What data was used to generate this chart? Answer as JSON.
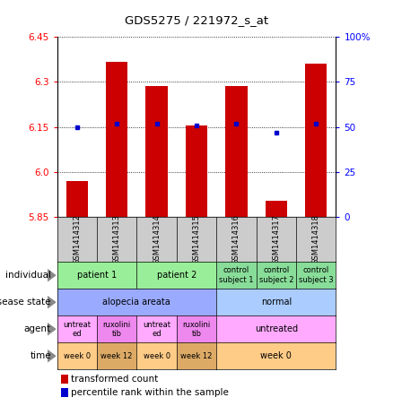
{
  "title": "GDS5275 / 221972_s_at",
  "samples": [
    "GSM1414312",
    "GSM1414313",
    "GSM1414314",
    "GSM1414315",
    "GSM1414316",
    "GSM1414317",
    "GSM1414318"
  ],
  "transformed_count": [
    5.97,
    6.365,
    6.285,
    6.155,
    6.285,
    5.905,
    6.36
  ],
  "percentile_rank": [
    50,
    52,
    52,
    51,
    52,
    47,
    52
  ],
  "y_min": 5.85,
  "y_max": 6.45,
  "y_ticks_red": [
    5.85,
    6.0,
    6.15,
    6.3,
    6.45
  ],
  "y_ticks_blue_labels": [
    "0",
    "25",
    "50",
    "75",
    "100%"
  ],
  "bar_color": "#cc0000",
  "dot_color": "#0000cc",
  "individual_data": [
    {
      "label": "patient 1",
      "start": 0,
      "end": 2,
      "color": "#99ee99"
    },
    {
      "label": "patient 2",
      "start": 2,
      "end": 4,
      "color": "#99ee99"
    },
    {
      "label": "control\nsubject 1",
      "start": 4,
      "end": 5,
      "color": "#88dd99"
    },
    {
      "label": "control\nsubject 2",
      "start": 5,
      "end": 6,
      "color": "#88dd99"
    },
    {
      "label": "control\nsubject 3",
      "start": 6,
      "end": 7,
      "color": "#88dd99"
    }
  ],
  "disease_data": [
    {
      "label": "alopecia areata",
      "start": 0,
      "end": 4,
      "color": "#99aaff"
    },
    {
      "label": "normal",
      "start": 4,
      "end": 7,
      "color": "#aaccff"
    }
  ],
  "agent_data": [
    {
      "label": "untreat\ned",
      "start": 0,
      "end": 1,
      "color": "#ffaaff"
    },
    {
      "label": "ruxolini\ntib",
      "start": 1,
      "end": 2,
      "color": "#ee88ee"
    },
    {
      "label": "untreat\ned",
      "start": 2,
      "end": 3,
      "color": "#ffaaff"
    },
    {
      "label": "ruxolini\ntib",
      "start": 3,
      "end": 4,
      "color": "#ee88ee"
    },
    {
      "label": "untreated",
      "start": 4,
      "end": 7,
      "color": "#ffaaff"
    }
  ],
  "time_data": [
    {
      "label": "week 0",
      "start": 0,
      "end": 1,
      "color": "#ffcc88"
    },
    {
      "label": "week 12",
      "start": 1,
      "end": 2,
      "color": "#ddaa66"
    },
    {
      "label": "week 0",
      "start": 2,
      "end": 3,
      "color": "#ffcc88"
    },
    {
      "label": "week 12",
      "start": 3,
      "end": 4,
      "color": "#ddaa66"
    },
    {
      "label": "week 0",
      "start": 4,
      "end": 7,
      "color": "#ffcc88"
    }
  ],
  "row_labels": [
    "individual",
    "disease state",
    "agent",
    "time"
  ],
  "legend_red": "transformed count",
  "legend_blue": "percentile rank within the sample",
  "sample_col_color": "#cccccc"
}
